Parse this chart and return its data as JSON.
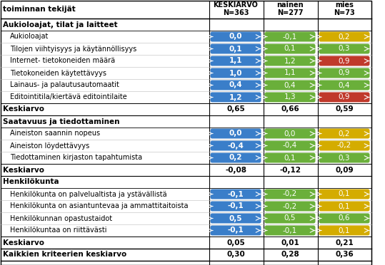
{
  "col_headers": [
    "KESKIARVO\nN=363",
    "nainen\nN=277",
    "mies\nN=73"
  ],
  "sections": [
    {
      "header": "Aukioloajat, tilat ja laitteet",
      "rows": [
        {
          "label": "Aukioloajat",
          "vals": [
            0.0,
            -0.1,
            0.2
          ]
        },
        {
          "label": "Tilojen viihtyisyys ja käytännöllisyys",
          "vals": [
            0.1,
            0.1,
            0.3
          ]
        },
        {
          "label": "Internet- tietokoneiden määrä",
          "vals": [
            1.1,
            1.2,
            0.9
          ]
        },
        {
          "label": "Tietokoneiden käytettävyys",
          "vals": [
            1.0,
            1.1,
            0.9
          ]
        },
        {
          "label": "Lainaus- ja palautusautomaatit",
          "vals": [
            0.4,
            0.4,
            0.4
          ]
        },
        {
          "label": "Editointitila/kiertävä editointilaite",
          "vals": [
            1.2,
            1.3,
            0.9
          ]
        }
      ],
      "avg_label": "Keskiarvo",
      "avg_vals": [
        0.65,
        0.66,
        0.59
      ]
    },
    {
      "header": "Saatavuus ja tiedottaminen",
      "rows": [
        {
          "label": "Aineiston saannin nopeus",
          "vals": [
            0.0,
            0.0,
            0.2
          ]
        },
        {
          "label": "Aineiston löydettävyys",
          "vals": [
            -0.4,
            -0.4,
            -0.2
          ]
        },
        {
          "label": "Tiedottaminen kirjaston tapahtumista",
          "vals": [
            0.2,
            0.1,
            0.3
          ]
        }
      ],
      "avg_label": "Keskiarvo",
      "avg_vals": [
        -0.08,
        -0.12,
        0.09
      ]
    },
    {
      "header": "Henkilökunta",
      "rows": [
        {
          "label": "Henkilökunta on palvelualtista ja ystävällistä",
          "vals": [
            -0.1,
            -0.2,
            0.1
          ]
        },
        {
          "label": "Henkilökunta on asiantuntevaa ja ammattitaitoista",
          "vals": [
            -0.1,
            -0.2,
            0.1
          ]
        },
        {
          "label": "Henkilökunnan opastustaidot",
          "vals": [
            0.5,
            0.5,
            0.6
          ]
        },
        {
          "label": "Henkilökuntaa on riittävästi",
          "vals": [
            -0.1,
            -0.1,
            0.1
          ]
        }
      ],
      "avg_label": "Keskiarvo",
      "avg_vals": [
        0.05,
        0.01,
        0.21
      ]
    }
  ],
  "final_label": "Kaikkien kriteerien keskiarvo",
  "final_vals": [
    0.3,
    0.28,
    0.36
  ],
  "color_blue": "#3a7ec9",
  "color_green": "#6aaf3a",
  "color_red": "#c0392b",
  "color_yellow": "#d4ac00",
  "threshold": 0.2
}
